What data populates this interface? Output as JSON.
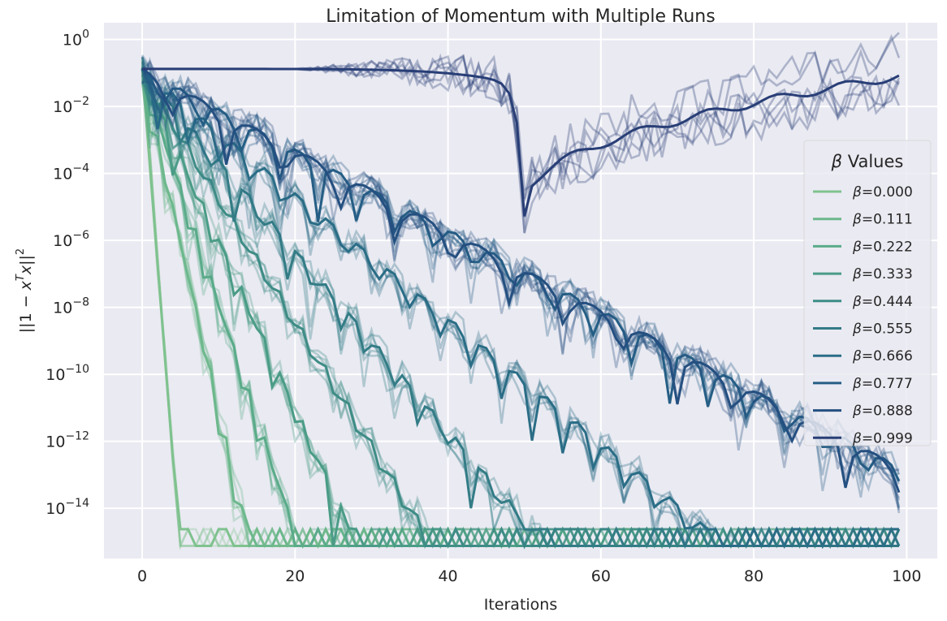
{
  "chart_data": {
    "type": "line",
    "title": "Limitation of Momentum with Multiple Runs",
    "xlabel": "Iterations",
    "ylabel_parts": {
      "prefix": "||1 − ",
      "x1": "x",
      "sup1": "T",
      "x2": "x",
      "suffix": "||",
      "sup2": "2"
    },
    "y_scale": "log",
    "xlim": [
      -5,
      104
    ],
    "ylim_exp": [
      -15.5,
      0.5
    ],
    "x_ticks": [
      0,
      20,
      40,
      60,
      80,
      100
    ],
    "x_tick_labels": [
      "0",
      "20",
      "40",
      "60",
      "80",
      "100"
    ],
    "y_tick_exps": [
      0,
      -2,
      -4,
      -6,
      -8,
      -10,
      -12,
      -14
    ],
    "y_tick_labels": [
      {
        "base": "10",
        "exp": "0"
      },
      {
        "base": "10",
        "exp": "−2"
      },
      {
        "base": "10",
        "exp": "−4"
      },
      {
        "base": "10",
        "exp": "−6"
      },
      {
        "base": "10",
        "exp": "−8"
      },
      {
        "base": "10",
        "exp": "−10"
      },
      {
        "base": "10",
        "exp": "−12"
      },
      {
        "base": "10",
        "exp": "−14"
      }
    ],
    "grid": true,
    "legend": {
      "title": "β Values",
      "title_symbol": "β",
      "title_text": " Values",
      "placement": "right"
    },
    "runs_per_series": 6,
    "iterations": 100,
    "floor_value": 1.5e-15,
    "series": [
      {
        "name": "β=0.000",
        "beta": 0.0,
        "color": "#7fc28e",
        "start": 0.13,
        "values_note": "decays to floor by ~iter 5"
      },
      {
        "name": "β=0.111",
        "beta": 0.111,
        "color": "#6cb88c",
        "start": 0.13
      },
      {
        "name": "β=0.222",
        "beta": 0.222,
        "color": "#5aab89",
        "start": 0.13
      },
      {
        "name": "β=0.333",
        "beta": 0.333,
        "color": "#4a9c87",
        "start": 0.13
      },
      {
        "name": "β=0.444",
        "beta": 0.444,
        "color": "#3e8c86",
        "start": 0.13
      },
      {
        "name": "β=0.555",
        "beta": 0.555,
        "color": "#337c86",
        "start": 0.13
      },
      {
        "name": "β=0.666",
        "beta": 0.666,
        "color": "#2a6d86",
        "start": 0.13
      },
      {
        "name": "β=0.777",
        "beta": 0.777,
        "color": "#255e85",
        "start": 0.13
      },
      {
        "name": "β=0.888",
        "beta": 0.888,
        "color": "#244f80",
        "start": 0.13
      },
      {
        "name": "β=0.999",
        "beta": 0.999,
        "color": "#283e76",
        "start": 0.13
      }
    ]
  }
}
